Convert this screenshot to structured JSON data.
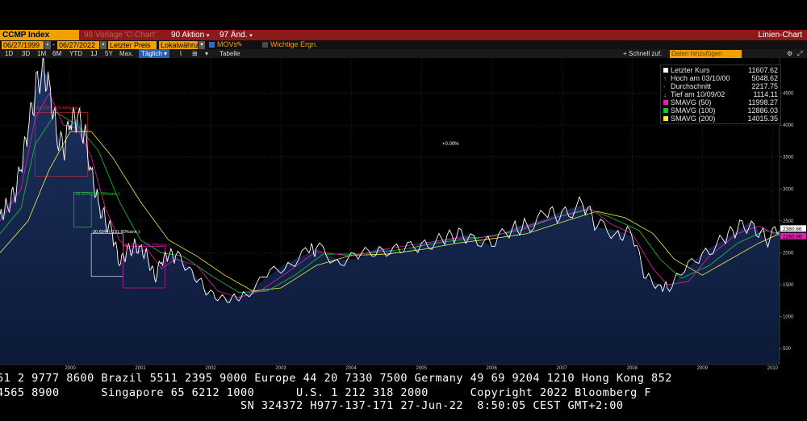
{
  "header": {
    "ticker": "CCMP Index",
    "item1": "98 Vorlage 'C-Chart'",
    "item2": "90 Aktion",
    "item3": "97 Änd.",
    "chart_type": "Linien-Chart"
  },
  "toolbar": {
    "date_from": "06/27/1999",
    "date_to": "06/27/2022",
    "price_field": "Letzter Preis",
    "currency": "Lokalwähru",
    "movs": "MOVs",
    "events": "Wichtige Ergn."
  },
  "periods": {
    "items": [
      "1D",
      "3D",
      "1M",
      "6M",
      "YTD",
      "1J",
      "5Y",
      "Max."
    ],
    "freq": "Täglich",
    "table": "Tabelle",
    "quick_add": "Schnell zuf.",
    "add_data_placeholder": "Daten hinzufügen"
  },
  "legend": {
    "rows": [
      {
        "label": "Letzter Kurs",
        "value": "11607.62",
        "color": "#ffffff",
        "icon": "square"
      },
      {
        "label": "Hoch am 03/10/00",
        "value": "5048.62",
        "color": "#aaaaaa",
        "icon": "up-arrow"
      },
      {
        "label": "Durchschnitt",
        "value": "2217.75",
        "color": "#aaaaaa",
        "icon": "dash"
      },
      {
        "label": "Tief am 10/09/02",
        "value": "1114.11",
        "color": "#aaaaaa",
        "icon": "down-arrow"
      },
      {
        "label": "SMAVG (50)",
        "value": "11998.27",
        "color": "#e020b0",
        "icon": "square"
      },
      {
        "label": "SMAVG (100)",
        "value": "12886.03",
        "color": "#20c040",
        "icon": "square"
      },
      {
        "label": "SMAVG (200)",
        "value": "14015.35",
        "color": "#f0f040",
        "icon": "square"
      }
    ]
  },
  "chart_data": {
    "type": "line",
    "x_labels": [
      "2000",
      "2001",
      "2002",
      "2003",
      "2004",
      "2005",
      "2006",
      "2007",
      "2008",
      "2009",
      "2010"
    ],
    "y_ticks": [
      500,
      1000,
      1500,
      2000,
      2500,
      3000,
      3500,
      4000,
      4500
    ],
    "ylim": [
      250,
      5050
    ],
    "xlim": [
      1999.5,
      2010.6
    ],
    "grid": true,
    "center_annotation": "+0.00%",
    "price_badges": [
      {
        "value": "2380.66",
        "y": 2380.66,
        "color": "#ffffff"
      },
      {
        "value": "2260.96",
        "y": 2260.96,
        "color": "#e020b0"
      }
    ],
    "annotations": [
      {
        "text": "-52.59% (-29.44%ann.)",
        "color": "#e03030",
        "x": 2000.0,
        "y": 4250
      },
      {
        "text": "-33.31% (-73.78%ann.)",
        "color": "#30d040",
        "x": 2000.55,
        "y": 2900
      },
      {
        "text": "-30.69% (-131.80%ann.)",
        "color": "#ffffff",
        "x": 2000.8,
        "y": 2310
      },
      {
        "text": "-44.98% (+57.12%ann.)",
        "color": "#e020b0",
        "x": 2001.25,
        "y": 2100
      }
    ],
    "series": [
      {
        "name": "Letzter Kurs",
        "color": "#ffffff",
        "x": [
          1999.5,
          1999.6,
          1999.7,
          1999.8,
          1999.9,
          2000.0,
          2000.1,
          2000.2,
          2000.3,
          2000.4,
          2000.5,
          2000.6,
          2000.7,
          2000.8,
          2000.9,
          2001.0,
          2001.1,
          2001.2,
          2001.3,
          2001.4,
          2001.5,
          2001.6,
          2001.7,
          2001.8,
          2001.9,
          2002.0,
          2002.2,
          2002.4,
          2002.6,
          2002.8,
          2003.0,
          2003.3,
          2003.6,
          2003.9,
          2004.0,
          2004.3,
          2004.6,
          2004.9,
          2005.2,
          2005.5,
          2005.8,
          2006.0,
          2006.2,
          2006.5,
          2006.8,
          2007.0,
          2007.3,
          2007.5,
          2007.8,
          2008.0,
          2008.3,
          2008.5,
          2008.7,
          2008.9,
          2009.0,
          2009.2,
          2009.5,
          2009.8,
          2010.0,
          2010.2,
          2010.4,
          2010.6
        ],
        "values": [
          2600,
          2750,
          2900,
          3300,
          3900,
          4500,
          4900,
          4700,
          3900,
          3600,
          4000,
          4100,
          3900,
          3300,
          2800,
          2500,
          2300,
          1800,
          2000,
          2100,
          2100,
          1950,
          1600,
          1850,
          1950,
          1950,
          1780,
          1450,
          1250,
          1300,
          1350,
          1620,
          1850,
          2000,
          2070,
          1900,
          1900,
          2100,
          2000,
          2150,
          2200,
          2250,
          2300,
          2100,
          2400,
          2450,
          2550,
          2650,
          2750,
          2400,
          2350,
          2250,
          1600,
          1500,
          1450,
          1650,
          2000,
          2200,
          2350,
          2500,
          2200,
          2340
        ]
      },
      {
        "name": "SMAVG (50)",
        "color": "#e020b0",
        "x": [
          1999.5,
          1999.8,
          2000.0,
          2000.2,
          2000.4,
          2000.6,
          2000.8,
          2001.0,
          2001.2,
          2001.4,
          2001.6,
          2001.8,
          2002.0,
          2002.3,
          2002.6,
          2002.9,
          2003.2,
          2003.6,
          2004.0,
          2004.5,
          2005.0,
          2005.5,
          2006.0,
          2006.5,
          2007.0,
          2007.5,
          2007.9,
          2008.2,
          2008.5,
          2008.8,
          2009.0,
          2009.3,
          2009.6,
          2010.0,
          2010.3,
          2010.6
        ],
        "values": [
          2500,
          3000,
          4100,
          4500,
          4000,
          3950,
          3500,
          2700,
          2200,
          2000,
          2050,
          1750,
          1900,
          1800,
          1400,
          1300,
          1400,
          1700,
          2020,
          1950,
          2060,
          2150,
          2230,
          2250,
          2420,
          2580,
          2700,
          2450,
          2300,
          1750,
          1500,
          1550,
          1950,
          2300,
          2420,
          2260
        ]
      },
      {
        "name": "SMAVG (100)",
        "color": "#20c040",
        "x": [
          1999.5,
          1999.8,
          2000.0,
          2000.3,
          2000.6,
          2000.9,
          2001.2,
          2001.5,
          2001.8,
          2002.1,
          2002.5,
          2002.9,
          2003.3,
          2003.7,
          2004.1,
          2004.6,
          2005.2,
          2005.8,
          2006.3,
          2006.9,
          2007.4,
          2007.9,
          2008.2,
          2008.6,
          2008.9,
          2009.2,
          2009.6,
          2010.0,
          2010.4,
          2010.6
        ],
        "values": [
          2300,
          2700,
          3700,
          4200,
          4000,
          3600,
          2800,
          2200,
          2000,
          1950,
          1650,
          1380,
          1400,
          1650,
          1980,
          1980,
          2050,
          2170,
          2230,
          2350,
          2550,
          2680,
          2550,
          2350,
          1900,
          1600,
          1800,
          2150,
          2350,
          2300
        ]
      },
      {
        "name": "SMAVG (200)",
        "color": "#f0f040",
        "x": [
          1999.5,
          1999.9,
          2000.2,
          2000.5,
          2000.8,
          2001.1,
          2001.5,
          2001.9,
          2002.3,
          2002.7,
          2003.1,
          2003.5,
          2004.0,
          2004.5,
          2005.0,
          2005.5,
          2006.0,
          2006.5,
          2007.0,
          2007.5,
          2008.0,
          2008.4,
          2008.8,
          2009.1,
          2009.5,
          2009.9,
          2010.3,
          2010.6
        ],
        "values": [
          2000,
          2500,
          3300,
          3900,
          3900,
          3500,
          2800,
          2200,
          1950,
          1650,
          1400,
          1450,
          1800,
          1960,
          1980,
          2050,
          2150,
          2220,
          2300,
          2480,
          2650,
          2550,
          2300,
          1900,
          1650,
          1900,
          2150,
          2300
        ]
      }
    ]
  },
  "ticker_lines": [
    "61 2 9777 8600 Brazil 5511 2395 9000 Europe 44 20 7330 7500 Germany 49 69 9204 1210 Hong Kong 852",
    "4565 8900      Singapore 65 6212 1000      U.S. 1 212 318 2000      Copyright 2022 Bloomberg F",
    "                                   SN 324372 H977-137-171 27-Jun-22  8:50:05 CEST GMT+2:00"
  ]
}
